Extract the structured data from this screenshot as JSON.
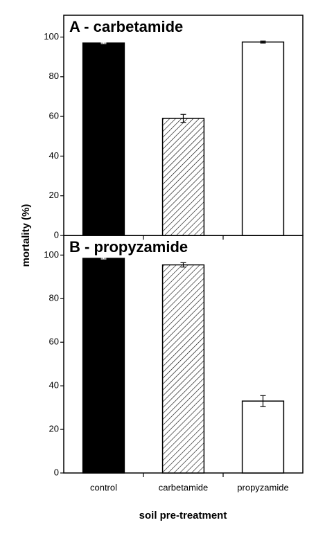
{
  "ylabel": "mortality (%)",
  "xlabel": "soil pre-treatment",
  "chart_data": [
    {
      "type": "bar",
      "title": "A - carbetamide",
      "values": [
        97,
        59,
        97.5
      ],
      "errors": [
        0.3,
        2,
        0.5
      ],
      "fills": [
        "#000000",
        "hatch",
        "#ffffff"
      ],
      "ylim": [
        0,
        111
      ],
      "yticks": [
        0,
        20,
        40,
        60,
        80,
        100
      ]
    },
    {
      "type": "bar",
      "title": "B - propyzamide",
      "categories": [
        "control",
        "carbetamide",
        "propyzamide"
      ],
      "values": [
        98.5,
        95.5,
        33
      ],
      "errors": [
        0.3,
        1,
        2.5
      ],
      "fills": [
        "#000000",
        "hatch",
        "#ffffff"
      ],
      "ylim": [
        0,
        109
      ],
      "yticks": [
        0,
        20,
        40,
        60,
        80,
        100
      ]
    }
  ]
}
